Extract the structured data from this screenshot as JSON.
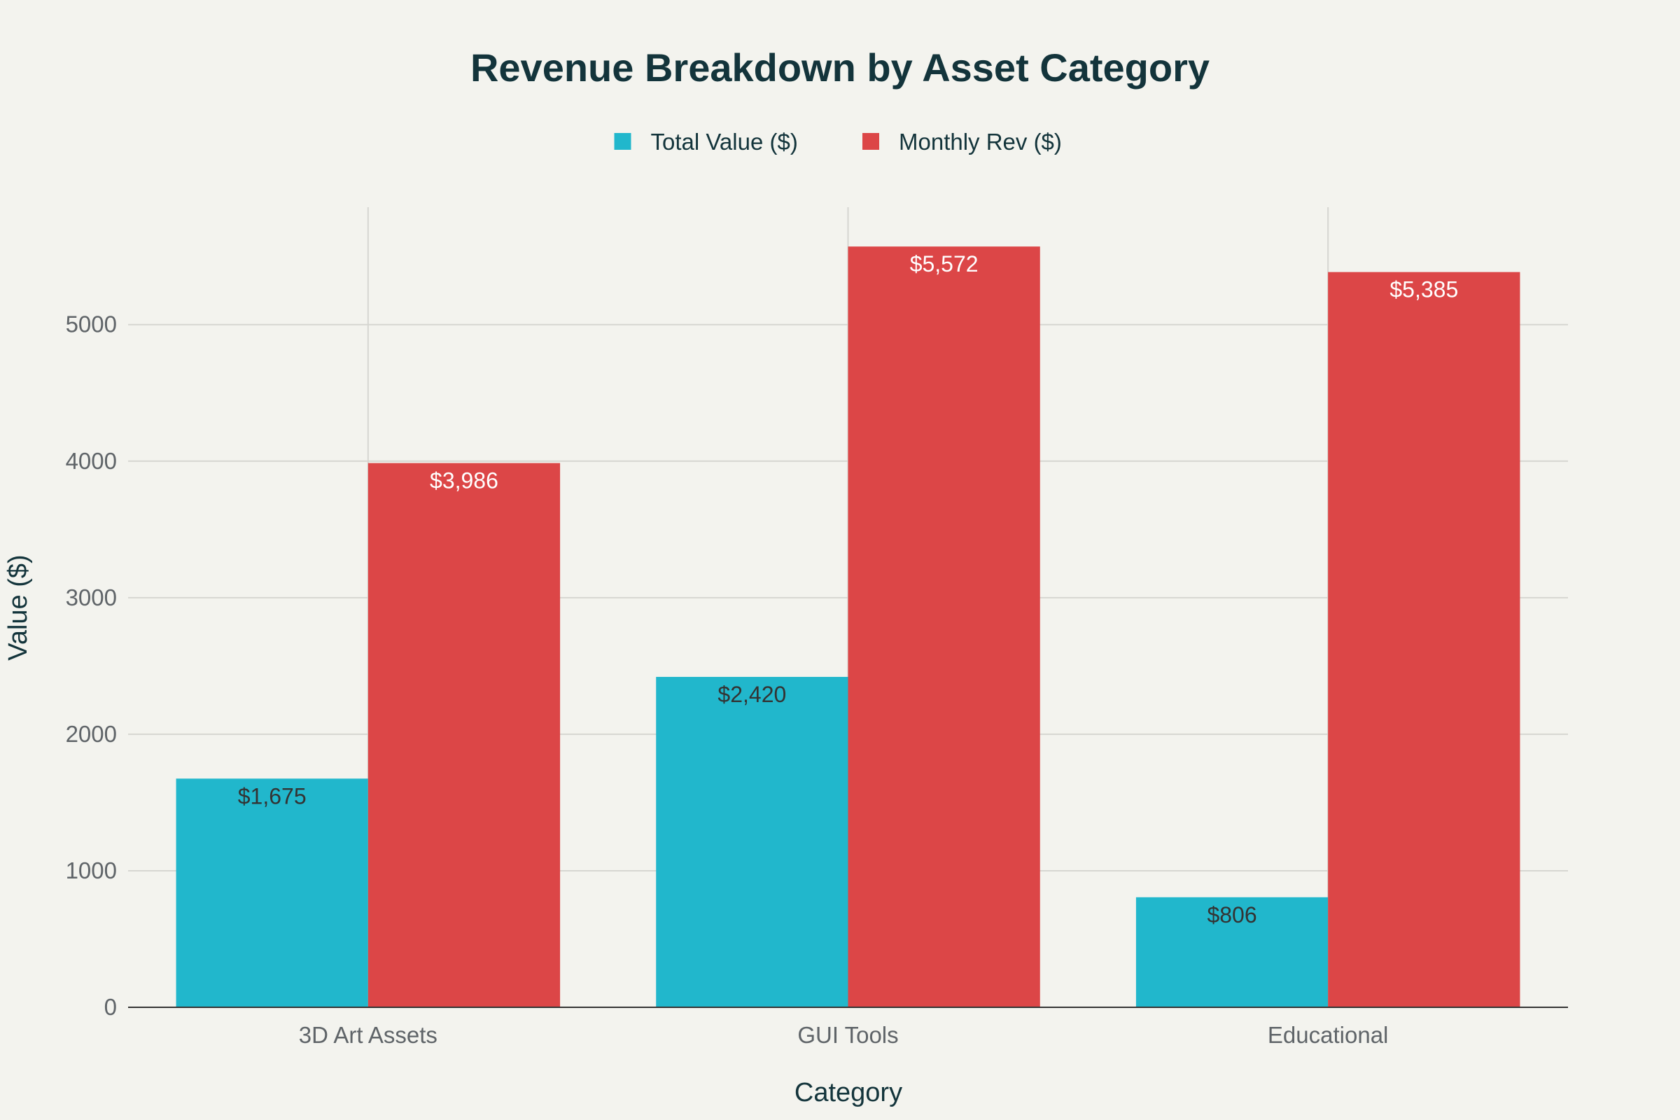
{
  "chart_data": {
    "type": "bar",
    "title": "Revenue Breakdown by Asset Category",
    "xlabel": "Category",
    "ylabel": "Value ($)",
    "categories": [
      "3D Art Assets",
      "GUI Tools",
      "Educational"
    ],
    "series": [
      {
        "name": "Total Value ($)",
        "color": "#21b7cc",
        "label_color": "#333333",
        "values": [
          1675,
          2420,
          806
        ],
        "labels": [
          "$1,675",
          "$2,420",
          "$806"
        ]
      },
      {
        "name": "Monthly Rev ($)",
        "color": "#dc4647",
        "label_color": "#ffffff",
        "values": [
          3986,
          5572,
          5385
        ],
        "labels": [
          "$3,986",
          "$5,572",
          "$5,385"
        ]
      }
    ],
    "yticks": [
      0,
      1000,
      2000,
      3000,
      4000,
      5000
    ],
    "ylim": [
      0,
      5860
    ],
    "grid": true,
    "legend_position": "top-center",
    "background": "#f3f3ee"
  }
}
